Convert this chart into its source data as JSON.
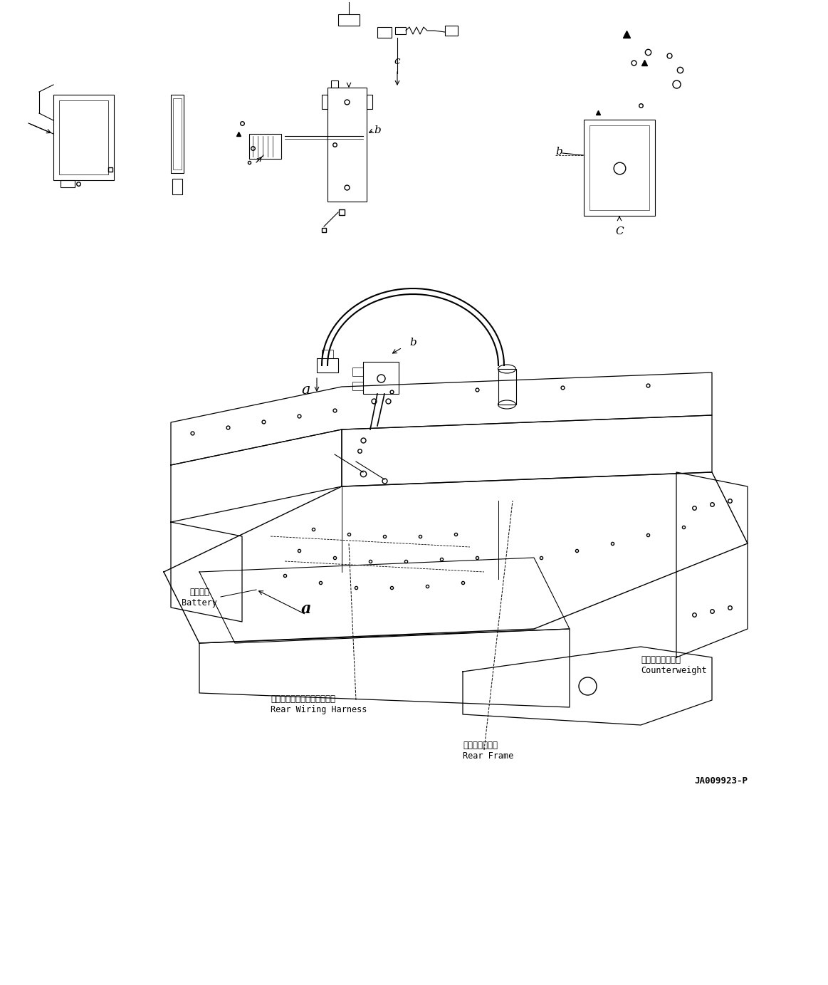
{
  "figsize": [
    11.63,
    13.83
  ],
  "dpi": 100,
  "bg_color": "#ffffff",
  "line_color": "#000000",
  "part_number": "JA009923-P",
  "labels": {
    "battery_jp": "バッテリ",
    "battery_en": "Battery",
    "counterweight_jp": "カウンタウェイト",
    "counterweight_en": "Counterweight",
    "rear_wiring_jp": "リヤーワイヤリングハーネス",
    "rear_wiring_en": "Rear Wiring Harness",
    "rear_frame_jp": "リヤーフレーム",
    "rear_frame_en": "Rear Frame",
    "label_a_upper": "a",
    "label_b_upper": "b",
    "label_c_upper": "c",
    "label_a_mid": "a",
    "label_b_mid": "b",
    "label_a_lower": "a",
    "label_c_lower": "C"
  }
}
